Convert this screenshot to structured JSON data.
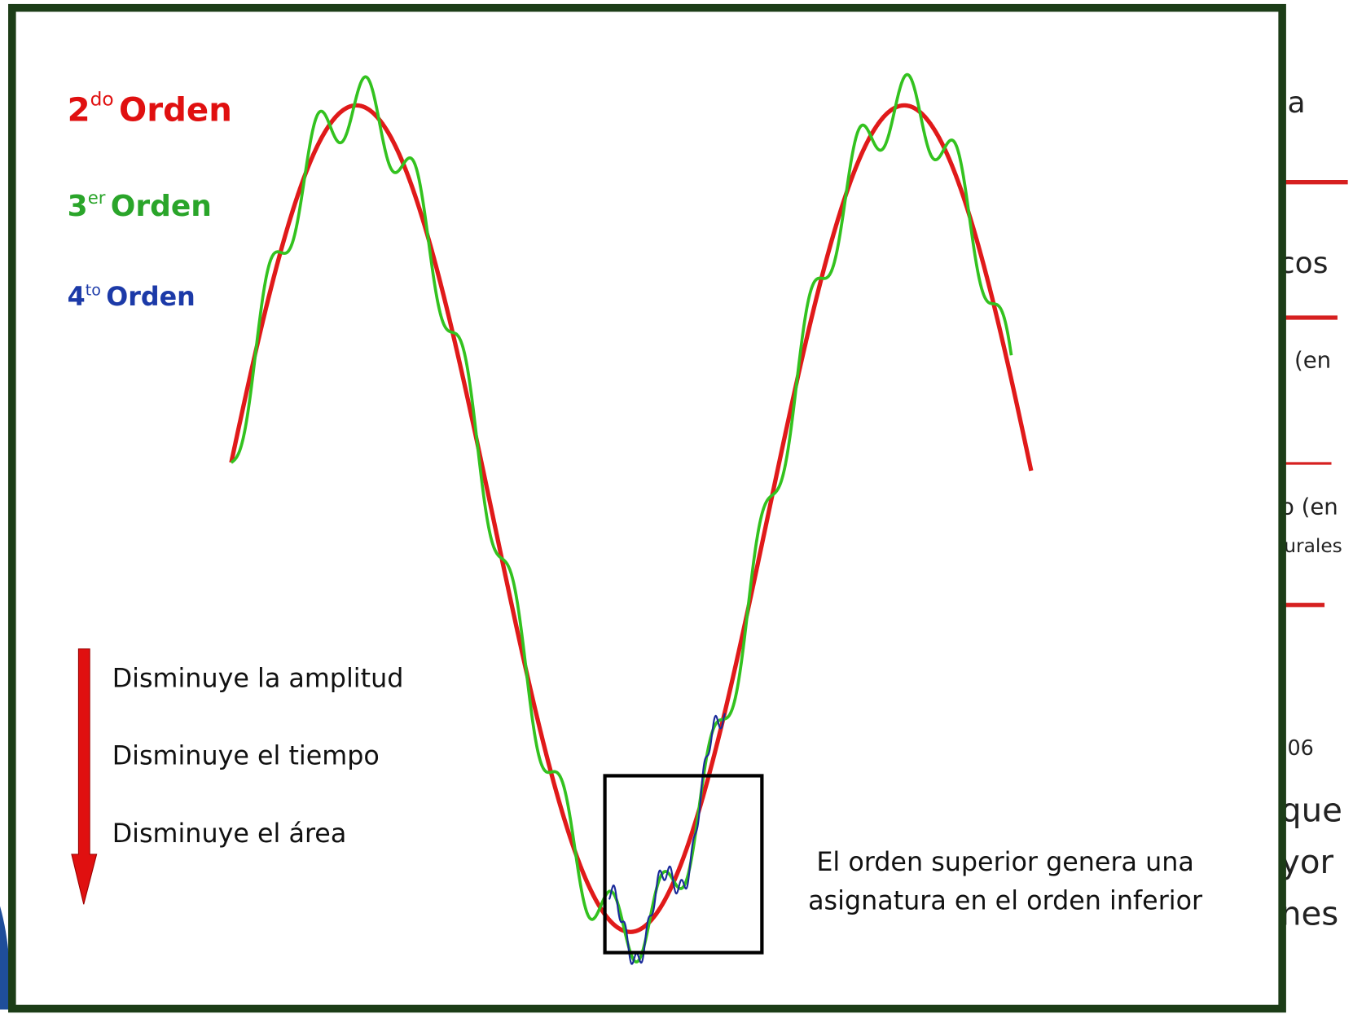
{
  "legend": [
    {
      "number": "2",
      "sup": "do",
      "label": "Orden"
    },
    {
      "number": "3",
      "sup": "er",
      "label": "Orden"
    },
    {
      "number": "4",
      "sup": "to",
      "label": "Orden"
    }
  ],
  "arrow_notes": [
    "Disminuye  la amplitud",
    "Disminuye  el tiempo",
    "Disminuye  el área"
  ],
  "note": [
    "El orden superior genera una",
    "asignatura en el orden inferior"
  ],
  "background_fragments": [
    "a",
    "cos",
    "(en",
    "o (en",
    "urales",
    "06",
    "que",
    "yor",
    "nes"
  ]
}
